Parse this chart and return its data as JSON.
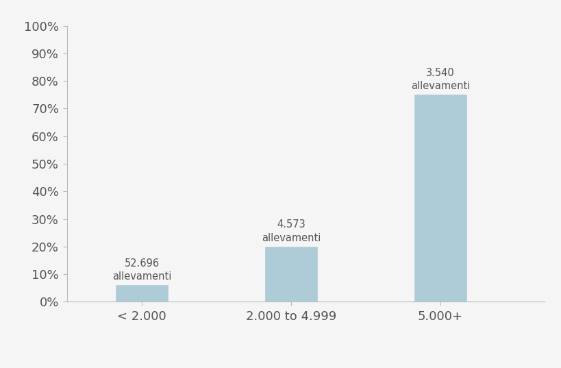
{
  "categories": [
    "< 2.000",
    "2.000 to 4.999",
    "5.000+"
  ],
  "values": [
    6.0,
    20.0,
    75.0
  ],
  "bar_labels_line1": [
    "52.696",
    "4.573",
    "3.540"
  ],
  "bar_labels_line2": [
    "allevamenti",
    "allevamenti",
    "allevamenti"
  ],
  "bar_color": "#aeccd8",
  "bar_edgecolor": "#aeccd8",
  "ylim": [
    0,
    100
  ],
  "yticks": [
    0,
    10,
    20,
    30,
    40,
    50,
    60,
    70,
    80,
    90,
    100
  ],
  "background_color": "#f5f5f5",
  "label_fontsize": 10.5,
  "tick_fontsize": 13,
  "bar_width": 0.35,
  "label_color": "#555555",
  "tick_color": "#555555",
  "spine_color": "#bbbbbb"
}
